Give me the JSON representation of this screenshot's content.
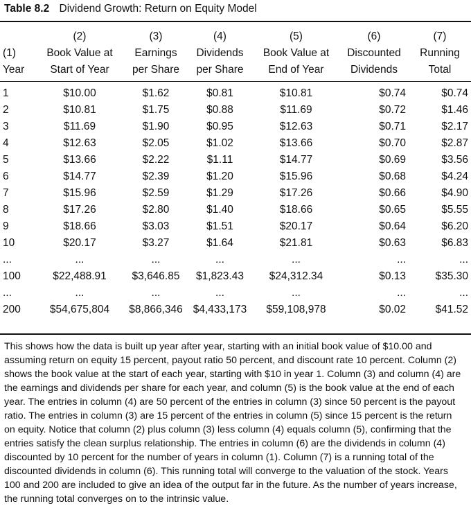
{
  "title": {
    "number": "Table 8.2",
    "text": "Dividend Growth: Return on Equity Model"
  },
  "columns": [
    {
      "lines": [
        "",
        "(1)",
        "Year"
      ]
    },
    {
      "lines": [
        "(2)",
        "Book Value at",
        "Start of Year"
      ]
    },
    {
      "lines": [
        "(3)",
        "Earnings",
        "per Share"
      ]
    },
    {
      "lines": [
        "(4)",
        "Dividends",
        "per Share"
      ]
    },
    {
      "lines": [
        "(5)",
        "Book Value at",
        "End of Year"
      ]
    },
    {
      "lines": [
        "(6)",
        "Discounted",
        "Dividends"
      ]
    },
    {
      "lines": [
        "(7)",
        "Running",
        "Total"
      ]
    }
  ],
  "rows": [
    [
      "1",
      "$10.00",
      "$1.62",
      "$0.81",
      "$10.81",
      "$0.74",
      "$0.74"
    ],
    [
      "2",
      "$10.81",
      "$1.75",
      "$0.88",
      "$11.69",
      "$0.72",
      "$1.46"
    ],
    [
      "3",
      "$11.69",
      "$1.90",
      "$0.95",
      "$12.63",
      "$0.71",
      "$2.17"
    ],
    [
      "4",
      "$12.63",
      "$2.05",
      "$1.02",
      "$13.66",
      "$0.70",
      "$2.87"
    ],
    [
      "5",
      "$13.66",
      "$2.22",
      "$1.11",
      "$14.77",
      "$0.69",
      "$3.56"
    ],
    [
      "6",
      "$14.77",
      "$2.39",
      "$1.20",
      "$15.96",
      "$0.68",
      "$4.24"
    ],
    [
      "7",
      "$15.96",
      "$2.59",
      "$1.29",
      "$17.26",
      "$0.66",
      "$4.90"
    ],
    [
      "8",
      "$17.26",
      "$2.80",
      "$1.40",
      "$18.66",
      "$0.65",
      "$5.55"
    ],
    [
      "9",
      "$18.66",
      "$3.03",
      "$1.51",
      "$20.17",
      "$0.64",
      "$6.20"
    ],
    [
      "10",
      "$20.17",
      "$3.27",
      "$1.64",
      "$21.81",
      "$0.63",
      "$6.83"
    ],
    [
      "...",
      "...",
      "...",
      "...",
      "...",
      "...",
      "..."
    ],
    [
      "100",
      "$22,488.91",
      "$3,646.85",
      "$1,823.43",
      "$24,312.34",
      "$0.13",
      "$35.30"
    ],
    [
      "...",
      "...",
      "...",
      "...",
      "...",
      "...",
      "..."
    ],
    [
      "200",
      "$54,675,804",
      "$8,866,346",
      "$4,433,173",
      "$59,108,978",
      "$0.02",
      "$41.52"
    ]
  ],
  "caption": "This shows how the data is built up year after year, starting with an initial book value of $10.00 and assuming return on equity 15 percent, payout ratio 50 percent, and discount rate 10 percent. Column (2) shows the book value at the start of each year, starting with $10 in year 1. Column (3) and column (4) are the earnings and dividends per share for each year, and column (5) is the book value at the end of each year. The entries in column (4) are 50 percent of the entries in column (3) since 50 percent is the payout ratio. The entries in column (3) are 15 percent of the entries in column (5) since 15 percent is the return on equity. Notice that column (2) plus column (3) less column (4) equals column (5), confirming that the entries satisfy the clean surplus relationship. The entries in column (6) are the dividends in column (4) discounted by 10 percent for the number of years in column (1). Column (7) is a running total of the discounted dividends in column (6). This running total will converge to the valuation of the stock. Years 100 and 200 are included to give an idea of the output far in the future. As the number of years increase, the running total converges on to the intrinsic value."
}
